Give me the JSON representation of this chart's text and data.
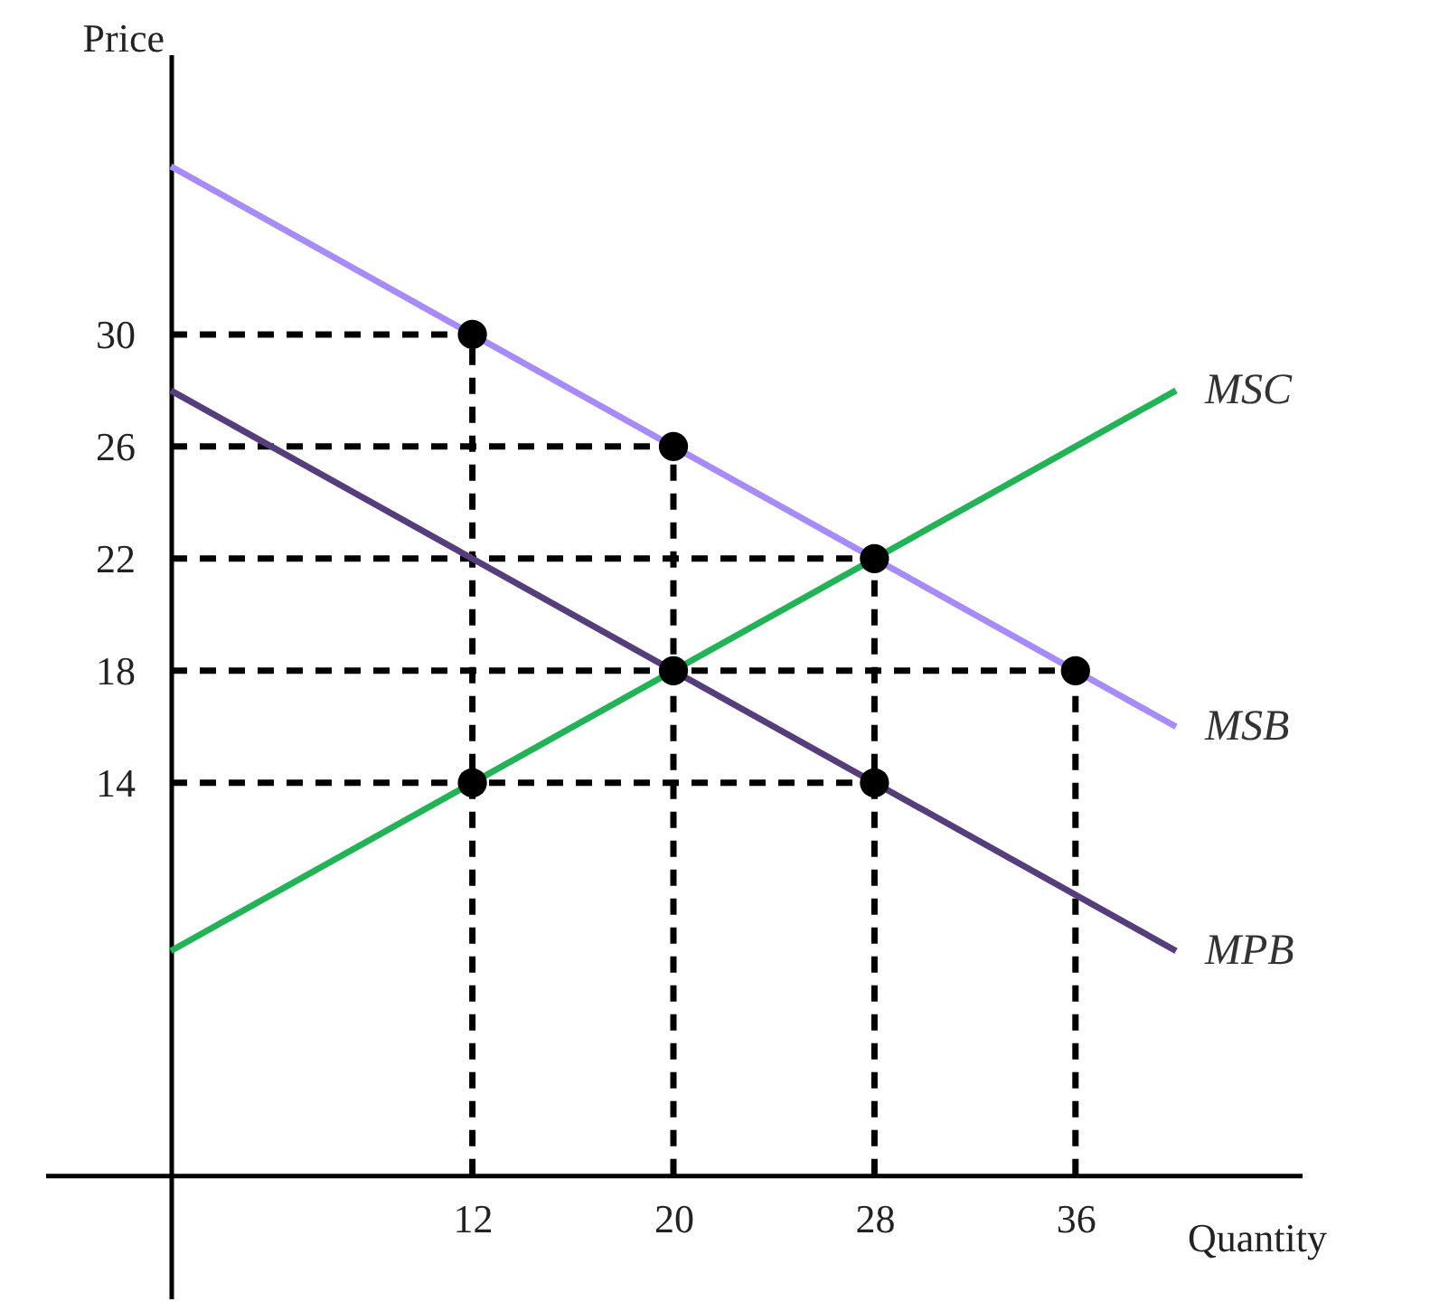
{
  "chart_data": {
    "type": "line",
    "xlabel": "Quantity",
    "ylabel": "Price",
    "xlim": [
      -5,
      45
    ],
    "ylim": [
      -4.4,
      40
    ],
    "xticks": [
      12,
      20,
      28,
      36
    ],
    "yticks": [
      14,
      18,
      22,
      26,
      30
    ],
    "series": [
      {
        "type": "line",
        "color": "#000000",
        "line_style": "dashed",
        "x": [
          0,
          12
        ],
        "values": [
          30,
          30
        ]
      },
      {
        "type": "line",
        "color": "#000000",
        "line_style": "dashed",
        "x": [
          0,
          20
        ],
        "values": [
          26,
          26
        ]
      },
      {
        "type": "line",
        "color": "#000000",
        "line_style": "dashed",
        "x": [
          0,
          28
        ],
        "values": [
          22,
          22
        ]
      },
      {
        "type": "line",
        "color": "#000000",
        "line_style": "dashed",
        "x": [
          0,
          36
        ],
        "values": [
          18,
          18
        ]
      },
      {
        "type": "line",
        "color": "#000000",
        "line_style": "dashed",
        "x": [
          0,
          28
        ],
        "values": [
          14,
          14
        ]
      },
      {
        "type": "line",
        "color": "#000000",
        "line_style": "dashed",
        "x": [
          12,
          12
        ],
        "values": [
          0,
          30
        ]
      },
      {
        "type": "line",
        "color": "#000000",
        "line_style": "dashed",
        "x": [
          20,
          20
        ],
        "values": [
          0,
          26
        ]
      },
      {
        "type": "line",
        "color": "#000000",
        "line_style": "dashed",
        "x": [
          28,
          28
        ],
        "values": [
          0,
          22
        ]
      },
      {
        "type": "line",
        "color": "#000000",
        "line_style": "dashed",
        "x": [
          36,
          36
        ],
        "values": [
          0,
          18
        ]
      },
      {
        "name": "MSB",
        "color": "#a78bfa",
        "x": [
          0,
          40
        ],
        "values": [
          36,
          16
        ]
      },
      {
        "name": "MPB",
        "color": "#563d7c",
        "x": [
          0,
          40
        ],
        "values": [
          28,
          8
        ]
      },
      {
        "name": "MSC",
        "color": "#22b357",
        "x": [
          0,
          40
        ],
        "values": [
          8,
          28
        ]
      },
      {
        "type": "scatter",
        "color": "#000000",
        "marker": "circle",
        "x": [
          12,
          20,
          28,
          36,
          20,
          12,
          28
        ],
        "values": [
          30,
          26,
          22,
          18,
          18,
          14,
          14
        ]
      }
    ]
  }
}
